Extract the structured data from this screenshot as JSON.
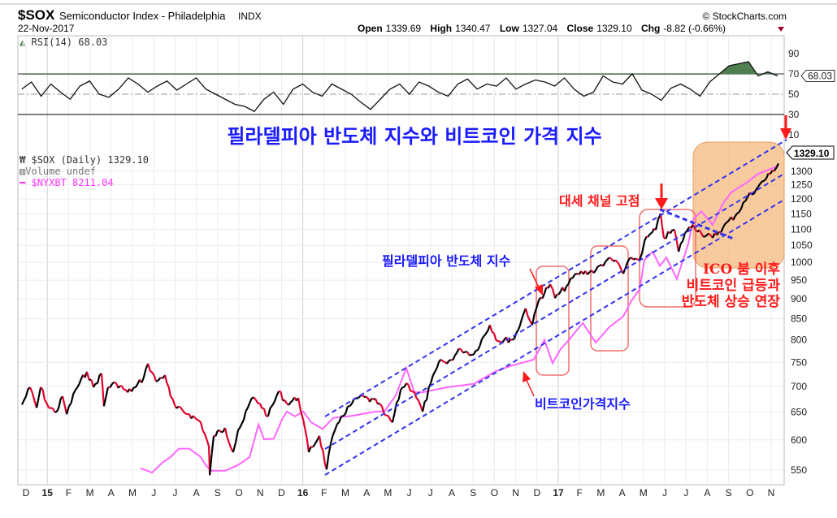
{
  "header": {
    "symbol": "$SOX",
    "name": "Semiconductor Index - Philadelphia",
    "exchange": "INDX",
    "date": "22-Nov-2017",
    "copyright": "© StockCharts.com",
    "open_label": "Open",
    "open": "1339.69",
    "high_label": "High",
    "high": "1340.47",
    "low_label": "Low",
    "low": "1327.04",
    "close_label": "Close",
    "close": "1329.10",
    "chg_label": "Chg",
    "chg": "-8.82 (-0.66%)"
  },
  "colors": {
    "candle_up": "#000000",
    "candle_down": "#e0002a",
    "overlay": "#ff66ff",
    "channel": "#3333ee",
    "highlight_box": "#f5b97f",
    "annotation_red": "#ff1a1a",
    "annotation_blue": "#1a1aff",
    "rsi_fill": "#4f7f4f"
  },
  "chart_data": [
    {
      "type": "line",
      "title": "RSI(14) 68.03",
      "legend": "RSI(14) 68.03",
      "last_value_label": "68.03",
      "ylim": [
        10,
        100
      ],
      "yticks": [
        "90",
        "70",
        "50",
        "30",
        "10"
      ],
      "x_unit": "months since 1-Dec-2014",
      "overbought": 70,
      "oversold": 30,
      "midline": 50,
      "values": [
        55,
        62,
        48,
        60,
        52,
        45,
        58,
        63,
        50,
        47,
        55,
        66,
        60,
        52,
        58,
        63,
        54,
        60,
        66,
        55,
        50,
        45,
        40,
        38,
        33,
        45,
        52,
        40,
        55,
        60,
        52,
        48,
        60,
        55,
        50,
        42,
        35,
        45,
        55,
        60,
        50,
        62,
        58,
        52,
        48,
        60,
        65,
        55,
        60,
        58,
        66,
        55,
        60,
        64,
        62,
        58,
        66,
        55,
        48,
        52,
        68,
        62,
        60,
        70,
        54,
        50,
        44,
        56,
        60,
        55,
        48,
        62,
        70,
        78,
        80,
        82,
        68,
        72,
        68
      ]
    },
    {
      "type": "line",
      "title": "$SOX (Daily) 1329.10",
      "scale": "log",
      "ylim": [
        530,
        1360
      ],
      "yticks": [
        "550",
        "600",
        "650",
        "700",
        "750",
        "800",
        "850",
        "900",
        "950",
        "1000",
        "1050",
        "1100",
        "1150",
        "1200",
        "1250",
        "1300"
      ],
      "x_unit": "months since 1-Dec-2014",
      "xticks": [
        "D",
        "15",
        "F",
        "M",
        "A",
        "M",
        "J",
        "J",
        "A",
        "S",
        "O",
        "N",
        "D",
        "16",
        "F",
        "M",
        "A",
        "M",
        "J",
        "J",
        "A",
        "S",
        "O",
        "N",
        "D",
        "17",
        "F",
        "M",
        "A",
        "M",
        "J",
        "J",
        "A",
        "S",
        "O",
        "N"
      ],
      "last_price_label": "1329.10",
      "legend": [
        {
          "label": "$SOX (Daily) 1329.10",
          "icon": "candles-icon"
        },
        {
          "label": "Volume undef",
          "icon": "volume-bars-icon"
        },
        {
          "label": "$NYXBT 8211.04",
          "icon": "pink-line-icon"
        }
      ],
      "series": [
        {
          "name": "$SOX",
          "x": [
            -0.19,
            0.19,
            0.5,
            0.69,
            1.07,
            1.45,
            1.72,
            1.91,
            2.33,
            2.86,
            3.17,
            3.55,
            3.66,
            3.85,
            4.24,
            4.77,
            5.15,
            5.53,
            5.73,
            6.11,
            6.53,
            6.79,
            7.06,
            7.67,
            8.21,
            8.59,
            8.63,
            8.82,
            9.35,
            9.73,
            9.96,
            10.23,
            10.61,
            10.99,
            11.37,
            11.87,
            12.25,
            12.79,
            13.02,
            13.28,
            13.78,
            14.12,
            14.31,
            14.81,
            15.31,
            15.69,
            16.6,
            16.83,
            17.21,
            17.6,
            17.86,
            18.24,
            18.63,
            19.01,
            19.5,
            19.77,
            20.42,
            21.03,
            21.79,
            22.18,
            22.94,
            23.47,
            23.78,
            24.08,
            24.62,
            24.85,
            25.38,
            25.88,
            26.76,
            27.29,
            27.79,
            28.05,
            28.44,
            28.82,
            29.05,
            29.58,
            29.81,
            29.96,
            30.46,
            30.65,
            30.95,
            31.34,
            31.72,
            32.25,
            32.75,
            33.4,
            33.89,
            34.39,
            34.96,
            35.34
          ],
          "values": [
            664,
            698,
            658,
            698,
            658,
            651,
            680,
            646,
            693,
            730,
            698,
            726,
            661,
            698,
            706,
            688,
            698,
            718,
            747,
            710,
            723,
            680,
            657,
            646,
            631,
            589,
            542,
            607,
            621,
            579,
            617,
            636,
            677,
            666,
            642,
            690,
            666,
            677,
            636,
            579,
            607,
            551,
            593,
            642,
            666,
            680,
            666,
            646,
            631,
            693,
            706,
            688,
            651,
            706,
            756,
            747,
            779,
            767,
            835,
            797,
            803,
            876,
            835,
            896,
            939,
            902,
            933,
            968,
            977,
            1007,
            1000,
            968,
            1014,
            1007,
            1063,
            1098,
            1151,
            1073,
            1098,
            1031,
            1088,
            1114,
            1088,
            1073,
            1107,
            1151,
            1206,
            1243,
            1290,
            1329
          ]
        },
        {
          "name": "$NYXBT (overlay, plotted on $SOX scale)",
          "x": [
            5.38,
            5.92,
            6.41,
            6.79,
            7.18,
            7.67,
            8.21,
            8.44,
            8.7,
            9.35,
            9.96,
            10.5,
            10.92,
            11.18,
            11.64,
            12.02,
            12.25,
            12.63,
            13.02,
            13.4,
            13.93,
            14.43,
            15.31,
            16.45,
            16.83,
            17.37,
            17.86,
            18.24,
            18.63,
            19.77,
            21.03,
            22.06,
            22.82,
            23.85,
            24.35,
            24.73,
            25.11,
            25.5,
            26.15,
            26.76,
            27.4,
            28.05,
            28.44,
            28.82,
            29.05,
            29.43,
            29.77,
            30.08,
            30.57,
            31.11,
            31.34,
            31.72,
            32.25,
            32.75,
            33.13,
            33.89,
            34.39,
            35.34
          ],
          "values": [
            553,
            546,
            562,
            571,
            585,
            585,
            571,
            558,
            549,
            549,
            558,
            571,
            627,
            601,
            602,
            636,
            651,
            642,
            651,
            631,
            619,
            639,
            643,
            651,
            651,
            682,
            738,
            688,
            688,
            698,
            705,
            731,
            743,
            756,
            800,
            748,
            779,
            800,
            840,
            794,
            830,
            856,
            896,
            925,
            1007,
            1031,
            990,
            1014,
            953,
            1056,
            1132,
            1158,
            1114,
            1186,
            1224,
            1260,
            1290,
            1320
          ]
        }
      ],
      "annotations": {
        "main_title": "필라델피아 반도체 지수와 비트코인 가격 지수",
        "sox_label": "필라델피아 반도체 지수",
        "btc_label": "비트코인가격지수",
        "channel_top": "대세 채널 고점",
        "ico_lines": [
          "ICO 붐 이후",
          "비트코인 급등과",
          "반도체 상승 연장"
        ]
      }
    }
  ]
}
